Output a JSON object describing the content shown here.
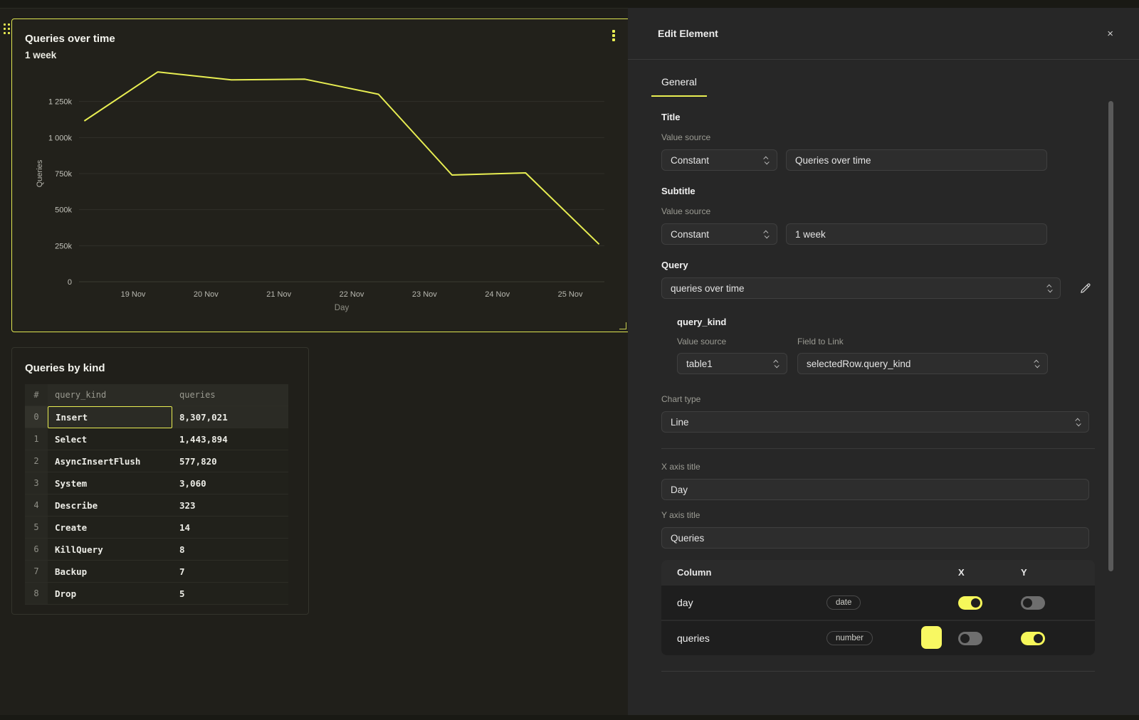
{
  "chart_data": {
    "type": "line",
    "title": "Queries over time",
    "subtitle": "1 week",
    "xlabel": "Day",
    "ylabel": "Queries",
    "x_ticks": [
      "19 Nov",
      "20 Nov",
      "21 Nov",
      "22 Nov",
      "23 Nov",
      "24 Nov",
      "25 Nov"
    ],
    "y_ticks": [
      "0",
      "250k",
      "500k",
      "750k",
      "1 000k",
      "1 250k"
    ],
    "y_tick_values": [
      0,
      250000,
      500000,
      750000,
      1000000,
      1250000
    ],
    "ylim": [
      0,
      1500000
    ],
    "grid": true,
    "legend": "none",
    "series": [
      {
        "name": "queries",
        "color": "#e8ee52",
        "values": [
          1115000,
          1455000,
          1400000,
          1405000,
          1300000,
          740000,
          755000,
          260000
        ]
      }
    ]
  },
  "canvas": {
    "chart_panel": {
      "title": "Queries over time",
      "subtitle": "1 week"
    },
    "table_panel": {
      "title": "Queries by kind",
      "columns": [
        "#",
        "query_kind",
        "queries"
      ],
      "selected_row_index": 0,
      "rows": [
        {
          "idx": "0",
          "kind": "Insert",
          "queries": "8,307,021"
        },
        {
          "idx": "1",
          "kind": "Select",
          "queries": "1,443,894"
        },
        {
          "idx": "2",
          "kind": "AsyncInsertFlush",
          "queries": "577,820"
        },
        {
          "idx": "3",
          "kind": "System",
          "queries": "3,060"
        },
        {
          "idx": "4",
          "kind": "Describe",
          "queries": "323"
        },
        {
          "idx": "5",
          "kind": "Create",
          "queries": "14"
        },
        {
          "idx": "6",
          "kind": "KillQuery",
          "queries": "8"
        },
        {
          "idx": "7",
          "kind": "Backup",
          "queries": "7"
        },
        {
          "idx": "8",
          "kind": "Drop",
          "queries": "5"
        }
      ]
    }
  },
  "editor": {
    "title": "Edit Element",
    "close": "×",
    "tab": "General",
    "title_section": {
      "label": "Title",
      "source_label": "Value source",
      "source": "Constant",
      "value": "Queries over time"
    },
    "subtitle_section": {
      "label": "Subtitle",
      "source_label": "Value source",
      "source": "Constant",
      "value": "1 week"
    },
    "query_section": {
      "label": "Query",
      "value": "queries over time"
    },
    "query_kind": {
      "label": "query_kind",
      "source_label": "Value source",
      "field_label": "Field to Link",
      "source": "table1",
      "field": "selectedRow.query_kind"
    },
    "chart_type": {
      "label": "Chart type",
      "value": "Line"
    },
    "x_axis": {
      "label": "X axis title",
      "value": "Day"
    },
    "y_axis": {
      "label": "Y axis title",
      "value": "Queries"
    },
    "columns_table": {
      "headers": {
        "column": "Column",
        "x": "X",
        "y": "Y"
      },
      "rows": [
        {
          "name": "day",
          "type": "date",
          "has_swatch": false,
          "x_on": true,
          "y_on": false
        },
        {
          "name": "queries",
          "type": "number",
          "has_swatch": true,
          "swatch_color": "#f8f862",
          "x_on": false,
          "y_on": true
        }
      ]
    },
    "accent_color": "#e9ee52"
  }
}
